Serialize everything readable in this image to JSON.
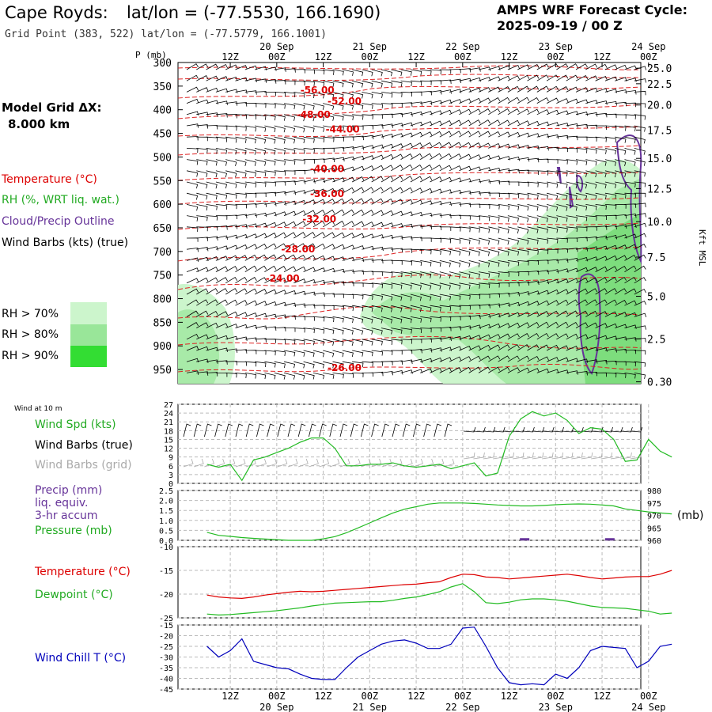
{
  "header": {
    "location": "Cape Royds:",
    "latlon": "lat/lon = (-77.5530, 166.1690)",
    "grid_point": "Grid Point (383, 522) lat/lon = (-77.5779, 166.1001)",
    "cycle_title": "AMPS WRF Forecast Cycle:",
    "cycle_time": "2025-09-19 / 00  Z"
  },
  "sidebar": {
    "model_grid_label": "Model Grid ΔX:",
    "model_grid_value": "8.000 km",
    "legend": [
      {
        "label": "Temperature (°C)",
        "color": "#dd0000"
      },
      {
        "label": "RH (%, WRT liq. wat.)",
        "color": "#22aa22"
      },
      {
        "label": "Cloud/Precip Outline",
        "color": "#663399"
      },
      {
        "label": "Wind Barbs (kts) (true)",
        "color": "#000000"
      }
    ],
    "rh_scale": [
      {
        "label": "RH > 70%",
        "color": "#ccf5cc"
      },
      {
        "label": "RH > 80%",
        "color": "#99e699"
      },
      {
        "label": "RH > 90%",
        "color": "#33dd33"
      }
    ]
  },
  "colors": {
    "temperature": "#dd0000",
    "rh": "#22bb22",
    "cloud": "#663399",
    "wind_chill": "#0000bb",
    "grid_barb": "#aaaaaa",
    "grid": "#999999"
  },
  "chart_data": [
    {
      "type": "heatmap",
      "name": "time-height cross section",
      "ylabel": "P (mb)",
      "y_ticks": [
        300,
        350,
        400,
        450,
        500,
        550,
        600,
        650,
        700,
        750,
        800,
        850,
        900,
        950
      ],
      "ylim": [
        300,
        980
      ],
      "right_axis_label": "Kft MSL",
      "right_ticks": [
        {
          "label": "25.0",
          "p": 312
        },
        {
          "label": "22.5",
          "p": 345
        },
        {
          "label": "20.0",
          "p": 390
        },
        {
          "label": "17.5",
          "p": 443
        },
        {
          "label": "15.0",
          "p": 503
        },
        {
          "label": "12.5",
          "p": 567
        },
        {
          "label": "10.0",
          "p": 637
        },
        {
          "label": "7.5",
          "p": 712
        },
        {
          "label": "5.0",
          "p": 795
        },
        {
          "label": "2.5",
          "p": 885
        },
        {
          "label": "0.30",
          "p": 976
        }
      ],
      "top_time_labels": [
        "12Z",
        "00Z",
        "12Z",
        "00Z",
        "12Z",
        "00Z",
        "12Z",
        "00Z",
        "12Z",
        "00Z"
      ],
      "top_date_labels": [
        "20 Sep",
        "21 Sep",
        "22 Sep",
        "23 Sep",
        "24 Sep"
      ],
      "x_hours_range": [
        0,
        120
      ],
      "isotherm_labels": [
        {
          "text": "-56.00",
          "hour": 28.5,
          "p": 365
        },
        {
          "text": "-52.00",
          "hour": 35.5,
          "p": 389
        },
        {
          "text": "-48.00",
          "hour": 27.5,
          "p": 417
        },
        {
          "text": "-44.00",
          "hour": 35.0,
          "p": 448
        },
        {
          "text": "-40.00",
          "hour": 31.0,
          "p": 532
        },
        {
          "text": "-36.00",
          "hour": 31.0,
          "p": 585
        },
        {
          "text": "-32.00",
          "hour": 29.0,
          "p": 638
        },
        {
          "text": "-28.00",
          "hour": 23.5,
          "p": 702
        },
        {
          "text": "-24.00",
          "hour": 19.5,
          "p": 764
        },
        {
          "text": "-26.00",
          "hour": 35.5,
          "p": 953
        }
      ]
    },
    {
      "type": "line",
      "name": "Wind at 10 m",
      "title": "Wind at 10 m",
      "series_labels": [
        {
          "label": "Wind Spd (kts)",
          "color": "#22aa22"
        },
        {
          "label": "Wind Barbs (true)",
          "color": "#000000"
        },
        {
          "label": "Wind Barbs (grid)",
          "color": "#aaaaaa"
        }
      ],
      "y_ticks": [
        "27",
        "24",
        "21",
        "18",
        "15",
        "12",
        "9",
        "6",
        "3",
        "0"
      ],
      "ylim": [
        0,
        27
      ],
      "x_hours": [
        0,
        3,
        6,
        9,
        12,
        15,
        18,
        21,
        24,
        27,
        30,
        33,
        36,
        39,
        42,
        45,
        48,
        51,
        54,
        57,
        60,
        63,
        66,
        69,
        72,
        75,
        78,
        81,
        84,
        87,
        90,
        93,
        96,
        99,
        102,
        105,
        108,
        111,
        114,
        117,
        120
      ],
      "wind_speed": [
        6.5,
        5.5,
        6.5,
        1.0,
        8.0,
        9.0,
        10.5,
        12.0,
        14.0,
        15.5,
        15.5,
        12.0,
        6.0,
        6.0,
        6.5,
        6.5,
        7.0,
        6.0,
        5.5,
        6.0,
        6.5,
        5.0,
        6.0,
        7.0,
        2.5,
        3.5,
        16.0,
        22.0,
        24.5,
        23.0,
        24.0,
        21.5,
        17.0,
        19.0,
        18.5,
        15.0,
        7.5,
        8.0,
        15.0,
        11.0,
        9.0
      ]
    },
    {
      "type": "line",
      "name": "Precip and Pressure",
      "series_labels": [
        {
          "label": "Precip (mm)",
          "color": "#663399"
        },
        {
          "label": "liq. equiv.",
          "color": "#663399"
        },
        {
          "label": "3-hr accum",
          "color": "#663399"
        },
        {
          "label": "Pressure (mb)",
          "color": "#22aa22"
        }
      ],
      "left_ticks": [
        "2.5",
        "2.0",
        "1.5",
        "1.0",
        "0.5",
        "0.0"
      ],
      "left_range": [
        0,
        2.5
      ],
      "right_ticks": [
        "980",
        "975",
        "970",
        "965",
        "960"
      ],
      "right_range": [
        960,
        980
      ],
      "right_unit": "(mb)",
      "x_hours": [
        0,
        3,
        6,
        9,
        12,
        15,
        18,
        21,
        24,
        27,
        30,
        33,
        36,
        39,
        42,
        45,
        48,
        51,
        54,
        57,
        60,
        63,
        66,
        69,
        72,
        75,
        78,
        81,
        84,
        87,
        90,
        93,
        96,
        99,
        102,
        105,
        108,
        111,
        114,
        117,
        120
      ],
      "pressure": [
        963.2,
        962.0,
        961.6,
        961.1,
        960.8,
        960.5,
        960.3,
        960.0,
        960.0,
        960.0,
        960.6,
        961.5,
        963.0,
        965.0,
        967.0,
        969.0,
        971.0,
        972.5,
        973.5,
        974.5,
        975.0,
        975.0,
        975.0,
        974.8,
        974.5,
        974.2,
        974.0,
        973.8,
        973.8,
        974.0,
        974.3,
        974.5,
        974.6,
        974.5,
        974.2,
        973.8,
        972.6,
        972.0,
        971.4,
        971.0,
        970.6
      ],
      "precip_hours": [
        82,
        104
      ],
      "precip_values": [
        0.05,
        0.05
      ]
    },
    {
      "type": "line",
      "name": "Temperature and Dewpoint",
      "series_labels": [
        {
          "label": "Temperature (°C)",
          "color": "#dd0000"
        },
        {
          "label": "Dewpoint (°C)",
          "color": "#22aa22"
        }
      ],
      "y_ticks": [
        "-10",
        "-15",
        "-20",
        "-25"
      ],
      "ylim": [
        -25,
        -10
      ],
      "x_hours": [
        0,
        3,
        6,
        9,
        12,
        15,
        18,
        21,
        24,
        27,
        30,
        33,
        36,
        39,
        42,
        45,
        48,
        51,
        54,
        57,
        60,
        63,
        66,
        69,
        72,
        75,
        78,
        81,
        84,
        87,
        90,
        93,
        96,
        99,
        102,
        105,
        108,
        111,
        114,
        117,
        120
      ],
      "temperature": [
        -20.2,
        -20.6,
        -20.8,
        -20.9,
        -20.6,
        -20.2,
        -19.9,
        -19.6,
        -19.4,
        -19.5,
        -19.4,
        -19.2,
        -19.0,
        -18.8,
        -18.6,
        -18.4,
        -18.2,
        -18.0,
        -17.9,
        -17.6,
        -17.4,
        -16.5,
        -15.8,
        -15.9,
        -16.4,
        -16.5,
        -16.8,
        -16.6,
        -16.4,
        -16.2,
        -16.0,
        -15.8,
        -16.1,
        -16.5,
        -16.8,
        -16.6,
        -16.4,
        -16.3,
        -16.3,
        -15.8,
        -15.0
      ],
      "dewpoint": [
        -24.2,
        -24.4,
        -24.3,
        -24.1,
        -23.9,
        -23.7,
        -23.5,
        -23.2,
        -22.9,
        -22.5,
        -22.2,
        -21.9,
        -21.8,
        -21.7,
        -21.6,
        -21.6,
        -21.3,
        -20.9,
        -20.6,
        -20.1,
        -19.5,
        -18.5,
        -17.8,
        -19.5,
        -21.8,
        -22.0,
        -21.7,
        -21.2,
        -21.0,
        -21.0,
        -21.2,
        -21.5,
        -22.0,
        -22.5,
        -22.8,
        -22.9,
        -23.0,
        -23.3,
        -23.6,
        -24.2,
        -24.0
      ]
    },
    {
      "type": "line",
      "name": "Wind Chill",
      "series_labels": [
        {
          "label": "Wind Chill T (°C)",
          "color": "#0000bb"
        }
      ],
      "y_ticks": [
        "-15",
        "-20",
        "-25",
        "-30",
        "-35",
        "-40",
        "-45"
      ],
      "ylim": [
        -45,
        -15
      ],
      "bottom_time_labels": [
        "12Z",
        "00Z",
        "12Z",
        "00Z",
        "12Z",
        "00Z",
        "12Z",
        "00Z",
        "12Z",
        "00Z"
      ],
      "bottom_date_labels": [
        "20 Sep",
        "21 Sep",
        "22 Sep",
        "23 Sep",
        "24 Sep"
      ],
      "x_hours": [
        0,
        3,
        6,
        9,
        12,
        15,
        18,
        21,
        24,
        27,
        30,
        33,
        36,
        39,
        42,
        45,
        48,
        51,
        54,
        57,
        60,
        63,
        66,
        69,
        72,
        75,
        78,
        81,
        84,
        87,
        90,
        93,
        96,
        99,
        102,
        105,
        108,
        111,
        114,
        117,
        120
      ],
      "wind_chill": [
        -25.0,
        -30.0,
        -27.0,
        -21.5,
        -32.0,
        -33.5,
        -35.0,
        -35.5,
        -38.0,
        -40.0,
        -40.5,
        -40.5,
        -35.0,
        -30.0,
        -27.0,
        -24.0,
        -22.5,
        -22.0,
        -23.5,
        -26.0,
        -26.0,
        -24.0,
        -16.5,
        -16.0,
        -25.0,
        -35.0,
        -42.0,
        -43.0,
        -42.5,
        -43.0,
        -38.0,
        -40.0,
        -35.0,
        -27.0,
        -25.0,
        -25.5,
        -26.0,
        -35.0,
        -32.0,
        -25.0,
        -24.0
      ]
    }
  ]
}
